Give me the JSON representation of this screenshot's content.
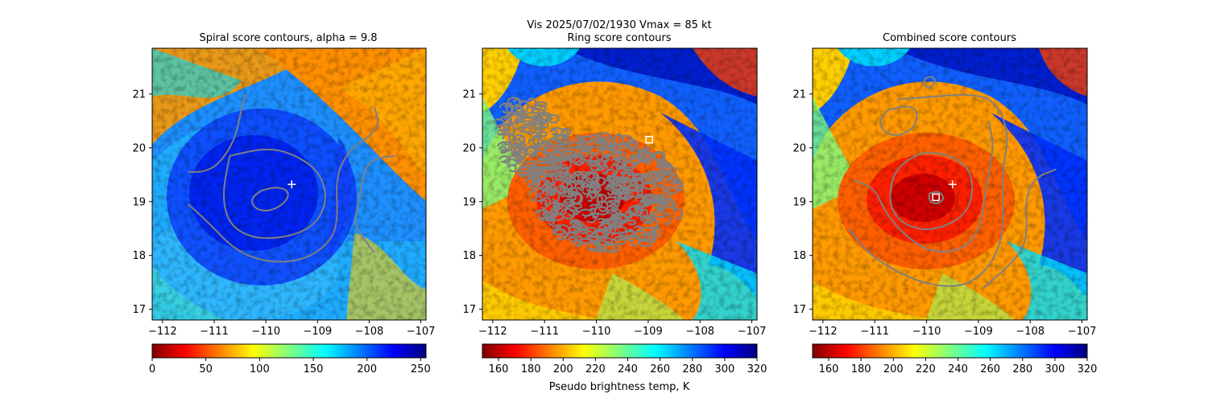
{
  "figure": {
    "suptitle": "Vis  2025/07/02/1930    Vmax = 85 kt",
    "colorbar_label": "Pseudo brightness temp, K"
  },
  "chart_data": [
    {
      "type": "heatmap",
      "title": "Spiral score contours, alpha =  9.8",
      "xlabel": "",
      "ylabel": "",
      "xlim": [
        -112.2,
        -106.9
      ],
      "ylim": [
        16.8,
        21.85
      ],
      "xticks": [
        -112,
        -111,
        -110,
        -109,
        -108,
        -107
      ],
      "yticks": [
        17,
        18,
        19,
        20,
        21
      ],
      "colormap": "jet_r",
      "colorbar": {
        "range": [
          0,
          255
        ],
        "ticks": [
          0,
          50,
          100,
          150,
          200,
          250
        ]
      },
      "center_marker": {
        "lon": -109.5,
        "lat": 19.32,
        "symbol": "+"
      },
      "contours": [
        [
          [
            -110.1,
            19.2
          ],
          [
            -109.8,
            19.28
          ],
          [
            -109.55,
            19.2
          ],
          [
            -109.6,
            19.0
          ],
          [
            -109.9,
            18.82
          ],
          [
            -110.2,
            18.85
          ],
          [
            -110.3,
            19.05
          ],
          [
            -110.1,
            19.2
          ]
        ],
        [
          [
            -110.7,
            19.85
          ],
          [
            -110.0,
            20.0
          ],
          [
            -109.5,
            19.9
          ],
          [
            -109.0,
            19.6
          ],
          [
            -108.8,
            19.1
          ],
          [
            -109.0,
            18.6
          ],
          [
            -109.5,
            18.35
          ],
          [
            -110.2,
            18.3
          ],
          [
            -110.7,
            18.55
          ],
          [
            -110.85,
            19.1
          ],
          [
            -110.7,
            19.85
          ]
        ],
        [
          [
            -111.5,
            19.55
          ],
          [
            -111.2,
            19.55
          ],
          [
            -110.9,
            19.7
          ],
          [
            -110.6,
            20.15
          ],
          [
            -110.5,
            20.6
          ],
          [
            -110.4,
            21.0
          ]
        ],
        [
          [
            -111.5,
            18.95
          ],
          [
            -111.1,
            18.6
          ],
          [
            -110.6,
            18.1
          ],
          [
            -110.0,
            17.87
          ],
          [
            -109.3,
            17.9
          ],
          [
            -108.8,
            18.2
          ],
          [
            -108.6,
            18.6
          ],
          [
            -108.65,
            19.5
          ],
          [
            -108.35,
            20.0
          ],
          [
            -108.0,
            20.2
          ],
          [
            -107.8,
            20.45
          ],
          [
            -107.9,
            20.75
          ]
        ],
        [
          [
            -107.5,
            19.85
          ],
          [
            -107.9,
            19.8
          ],
          [
            -108.1,
            19.6
          ],
          [
            -108.2,
            19.0
          ],
          [
            -108.3,
            18.6
          ],
          [
            -108.1,
            18.3
          ],
          [
            -107.9,
            18.05
          ]
        ]
      ]
    },
    {
      "type": "heatmap",
      "title": "Ring score contours",
      "xlabel": "",
      "ylabel": "",
      "xlim": [
        -112.2,
        -106.9
      ],
      "ylim": [
        16.8,
        21.85
      ],
      "xticks": [
        -112,
        -111,
        -110,
        -109,
        -108,
        -107
      ],
      "yticks": [
        17,
        18,
        19,
        20,
        21
      ],
      "colormap": "jet_r",
      "colorbar": {
        "range": [
          150,
          320
        ],
        "ticks": [
          160,
          180,
          200,
          220,
          240,
          260,
          280,
          300,
          320
        ]
      },
      "square_marker": {
        "lon": -108.98,
        "lat": 20.15
      },
      "contour_regions": [
        {
          "name": "upper-left blob",
          "center": [
            -111.2,
            20.1
          ],
          "radii": [
            0.68,
            0.85
          ],
          "rotation": -25
        },
        {
          "name": "main blob",
          "center": [
            -109.8,
            19.15
          ],
          "radii": [
            1.45,
            1.05
          ],
          "rotation": 8
        }
      ]
    },
    {
      "type": "heatmap",
      "title": "Combined score contours",
      "xlabel": "",
      "ylabel": "",
      "xlim": [
        -112.2,
        -106.9
      ],
      "ylim": [
        16.8,
        21.85
      ],
      "xticks": [
        -112,
        -111,
        -110,
        -109,
        -108,
        -107
      ],
      "yticks": [
        17,
        18,
        19,
        20,
        21
      ],
      "colormap": "jet_r",
      "colorbar": {
        "range": [
          150,
          320
        ],
        "ticks": [
          160,
          180,
          200,
          220,
          240,
          260,
          280,
          300,
          320
        ]
      },
      "center_marker": {
        "lon": -109.5,
        "lat": 19.32,
        "symbol": "+"
      },
      "square_marker": {
        "lon": -109.82,
        "lat": 19.08
      },
      "contours": [
        [
          [
            -109.95,
            19.15
          ],
          [
            -109.75,
            19.2
          ],
          [
            -109.65,
            19.05
          ],
          [
            -109.8,
            18.95
          ],
          [
            -109.95,
            19.0
          ],
          [
            -109.95,
            19.15
          ]
        ],
        [
          [
            -110.1,
            19.9
          ],
          [
            -109.6,
            19.9
          ],
          [
            -109.15,
            19.6
          ],
          [
            -109.1,
            19.1
          ],
          [
            -109.3,
            18.7
          ],
          [
            -109.9,
            18.45
          ],
          [
            -110.4,
            18.55
          ],
          [
            -110.7,
            18.85
          ],
          [
            -110.7,
            19.35
          ],
          [
            -110.5,
            19.7
          ],
          [
            -110.1,
            19.9
          ]
        ],
        [
          [
            -110.75,
            20.7
          ],
          [
            -110.3,
            20.8
          ],
          [
            -110.15,
            20.6
          ],
          [
            -110.3,
            20.3
          ],
          [
            -110.7,
            20.2
          ],
          [
            -110.95,
            20.45
          ],
          [
            -110.75,
            20.7
          ]
        ],
        [
          [
            -111.5,
            18.5
          ],
          [
            -111.1,
            18.0
          ],
          [
            -110.3,
            17.55
          ],
          [
            -109.6,
            17.4
          ],
          [
            -109.1,
            17.5
          ],
          [
            -108.7,
            17.9
          ],
          [
            -108.5,
            18.5
          ],
          [
            -108.55,
            19.5
          ],
          [
            -108.4,
            20.3
          ],
          [
            -108.7,
            20.9
          ],
          [
            -109.2,
            21.0
          ],
          [
            -109.9,
            20.95
          ],
          [
            -110.55,
            20.9
          ]
        ],
        [
          [
            -111.4,
            19.4
          ],
          [
            -111.0,
            19.25
          ],
          [
            -110.8,
            18.8
          ],
          [
            -110.4,
            18.35
          ],
          [
            -109.9,
            18.05
          ],
          [
            -109.3,
            18.1
          ],
          [
            -108.95,
            18.5
          ],
          [
            -108.85,
            19.3
          ],
          [
            -108.7,
            20.0
          ],
          [
            -108.8,
            20.5
          ]
        ],
        [
          [
            -107.5,
            19.6
          ],
          [
            -107.9,
            19.45
          ],
          [
            -108.1,
            19.05
          ],
          [
            -108.05,
            18.3
          ],
          [
            -108.3,
            17.9
          ],
          [
            -108.9,
            17.4
          ]
        ],
        [
          [
            -109.95,
            21.1
          ],
          [
            -109.8,
            21.25
          ],
          [
            -109.95,
            21.35
          ],
          [
            -110.1,
            21.2
          ],
          [
            -109.95,
            21.1
          ]
        ]
      ]
    }
  ]
}
